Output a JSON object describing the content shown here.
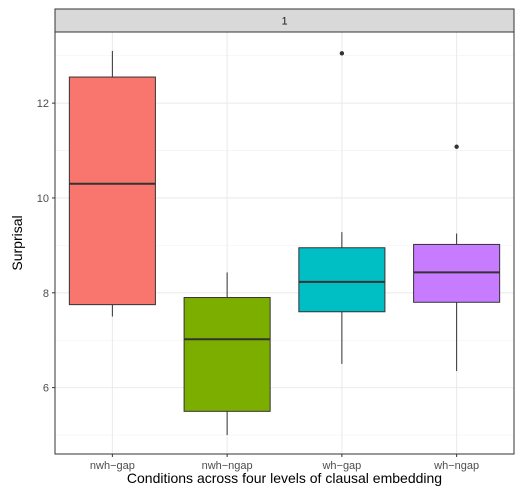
{
  "chart_data": {
    "type": "boxplot",
    "facet_label": "1",
    "xlabel": "Conditions across four levels of clausal embedding",
    "ylabel": "Surprisal",
    "ylim": [
      4.6,
      13.5
    ],
    "yticks": [
      6,
      8,
      10,
      12
    ],
    "grid": true,
    "legend": "none",
    "categories": [
      "nwh−gap",
      "nwh−ngap",
      "wh−gap",
      "wh−ngap"
    ],
    "boxes": [
      {
        "category": "nwh−gap",
        "whisker_low": 7.5,
        "q1": 7.75,
        "median": 10.3,
        "q3": 12.55,
        "whisker_high": 13.1,
        "outliers": [],
        "color": "#F8766D"
      },
      {
        "category": "nwh−ngap",
        "whisker_low": 5.0,
        "q1": 5.5,
        "median": 7.02,
        "q3": 7.9,
        "whisker_high": 8.43,
        "outliers": [],
        "color": "#7CAE00"
      },
      {
        "category": "wh−gap",
        "whisker_low": 6.5,
        "q1": 7.6,
        "median": 8.23,
        "q3": 8.95,
        "whisker_high": 9.28,
        "outliers": [
          13.05
        ],
        "color": "#00BFC4"
      },
      {
        "category": "wh−ngap",
        "whisker_low": 6.35,
        "q1": 7.8,
        "median": 8.43,
        "q3": 9.02,
        "whisker_high": 9.25,
        "outliers": [
          11.08
        ],
        "color": "#C77CFF"
      }
    ]
  }
}
